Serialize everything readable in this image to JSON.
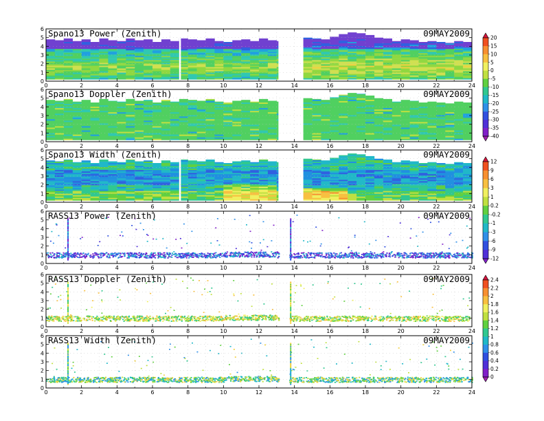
{
  "chart_data": [
    {
      "type": "heatmap",
      "title": "Spano13 Power (Zenith)",
      "date": "09MAY2009",
      "xlim": [
        0,
        24
      ],
      "ylim": [
        0,
        6
      ],
      "xticks": [
        "0",
        "2",
        "4",
        "6",
        "8",
        "10",
        "12",
        "14",
        "16",
        "18",
        "20",
        "22",
        "24"
      ],
      "yticks": [
        "0",
        "1",
        "2",
        "3",
        "4",
        "5",
        "6"
      ],
      "colorbar": "power",
      "data_top_km": [
        4.8,
        4.7,
        4.9,
        4.6,
        4.8,
        4.5,
        4.9,
        4.7,
        4.6,
        4.9,
        4.7,
        4.8,
        4.5,
        4.8,
        4.6,
        4.9,
        4.8,
        4.7,
        4.9,
        4.6,
        4.5,
        4.7,
        4.8,
        4.6,
        4.9,
        4.7,
        4.6,
        null,
        null,
        5.0,
        4.9,
        4.8,
        5.1,
        5.4,
        5.6,
        5.5,
        5.3,
        5.0,
        4.9,
        4.6,
        4.8,
        4.7,
        4.5,
        4.6,
        4.5,
        4.4,
        4.6,
        4.5
      ],
      "gaps_hours": [
        [
          7.5,
          7.6
        ],
        [
          13.1,
          13.8
        ]
      ]
    },
    {
      "type": "heatmap",
      "title": "Spano13 Doppler (Zenith)",
      "date": "09MAY2009",
      "xlim": [
        0,
        24
      ],
      "ylim": [
        0,
        6
      ],
      "xticks": [
        "0",
        "2",
        "4",
        "6",
        "8",
        "10",
        "12",
        "14",
        "16",
        "18",
        "20",
        "22",
        "24"
      ],
      "yticks": [
        "0",
        "1",
        "2",
        "3",
        "4",
        "5",
        "6"
      ],
      "colorbar": "power",
      "data_top_km": [
        4.8,
        4.7,
        4.9,
        4.6,
        4.8,
        4.5,
        4.9,
        4.7,
        4.6,
        4.9,
        4.7,
        4.8,
        4.5,
        4.8,
        4.6,
        4.9,
        4.8,
        4.7,
        4.9,
        4.6,
        4.5,
        4.7,
        4.8,
        4.6,
        4.9,
        4.7,
        4.6,
        null,
        null,
        5.0,
        4.9,
        4.8,
        5.1,
        5.4,
        5.6,
        5.5,
        5.3,
        5.0,
        4.9,
        4.6,
        4.8,
        4.7,
        4.5,
        4.6,
        4.5,
        4.4,
        4.6,
        4.5
      ],
      "gaps_hours": [
        [
          13.1,
          13.8
        ]
      ]
    },
    {
      "type": "heatmap",
      "title": "Spano13 Width (Zenith)",
      "date": "09MAY2009",
      "xlim": [
        0,
        24
      ],
      "ylim": [
        0,
        6
      ],
      "xticks": [
        "0",
        "2",
        "4",
        "6",
        "8",
        "10",
        "12",
        "14",
        "16",
        "18",
        "20",
        "22",
        "24"
      ],
      "yticks": [
        "0",
        "1",
        "2",
        "3",
        "4",
        "5",
        "6"
      ],
      "colorbar": "width",
      "data_top_km": [
        4.8,
        4.7,
        4.9,
        4.6,
        4.8,
        4.5,
        4.9,
        4.7,
        4.6,
        4.9,
        4.7,
        4.8,
        4.5,
        4.8,
        4.6,
        4.9,
        4.8,
        4.7,
        4.9,
        4.6,
        4.5,
        4.7,
        4.8,
        4.6,
        4.9,
        4.7,
        4.6,
        null,
        null,
        5.0,
        4.9,
        4.8,
        5.1,
        5.4,
        5.6,
        5.5,
        5.3,
        5.0,
        4.9,
        4.6,
        4.8,
        4.7,
        4.5,
        4.6,
        4.5,
        4.4,
        4.6,
        4.5
      ],
      "gaps_hours": [
        [
          7.5,
          7.6
        ],
        [
          13.1,
          13.8
        ]
      ]
    },
    {
      "type": "scatter",
      "title": "RASS13 Power (Zenith)",
      "date": "09MAY2009",
      "xlim": [
        0,
        24
      ],
      "ylim": [
        0,
        6
      ],
      "xticks": [
        "0",
        "2",
        "4",
        "6",
        "8",
        "10",
        "12",
        "14",
        "16",
        "18",
        "20",
        "22",
        "24"
      ],
      "yticks": [
        "0",
        "1",
        "2",
        "3",
        "4",
        "5",
        "6"
      ],
      "colorbar": "width",
      "band_km": [
        0.7,
        1.3
      ],
      "spikes_hours": [
        1.2,
        13.75
      ]
    },
    {
      "type": "scatter",
      "title": "RASS13 Doppler (Zenith)",
      "date": "09MAY2009",
      "xlim": [
        0,
        24
      ],
      "ylim": [
        0,
        6
      ],
      "xticks": [
        "0",
        "2",
        "4",
        "6",
        "8",
        "10",
        "12",
        "14",
        "16",
        "18",
        "20",
        "22",
        "24"
      ],
      "yticks": [
        "0",
        "1",
        "2",
        "3",
        "4",
        "5",
        "6"
      ],
      "colorbar": "doppler",
      "band_km": [
        0.7,
        1.3
      ],
      "spikes_hours": [
        1.2,
        13.75
      ]
    },
    {
      "type": "scatter",
      "title": "RASS13 Width (Zenith)",
      "date": "09MAY2009",
      "xlim": [
        0,
        24
      ],
      "ylim": [
        0,
        6
      ],
      "xticks": [
        "0",
        "2",
        "4",
        "6",
        "8",
        "10",
        "12",
        "14",
        "16",
        "18",
        "20",
        "22",
        "24"
      ],
      "yticks": [
        "0",
        "1",
        "2",
        "3",
        "4",
        "5",
        "6"
      ],
      "colorbar": "doppler",
      "band_km": [
        0.7,
        1.3
      ],
      "spikes_hours": [
        1.2,
        13.75
      ]
    }
  ],
  "colorbars": {
    "power": {
      "labels": [
        "20",
        "15",
        "10",
        "5",
        "0",
        "-5",
        "-10",
        "-15",
        "-20",
        "-25",
        "-30",
        "-35",
        "-40"
      ],
      "colors": [
        "#d4143c",
        "#f05020",
        "#f89030",
        "#f8c040",
        "#f0f060",
        "#c0e040",
        "#60d040",
        "#30c890",
        "#20b8c8",
        "#3090e8",
        "#3050e0",
        "#5030d8",
        "#8020c8",
        "#a020b0"
      ]
    },
    "width": {
      "labels": [
        "12",
        "9",
        "6",
        "3",
        "1",
        "0.2",
        "-0.2",
        "-1",
        "-3",
        "-6",
        "-9",
        "-12"
      ],
      "colors": [
        "#d4143c",
        "#f05020",
        "#f89030",
        "#f8c040",
        "#f0f060",
        "#c0e040",
        "#60d040",
        "#30c890",
        "#20b8c8",
        "#3090e8",
        "#3050e0",
        "#5030d8",
        "#8020c8"
      ]
    },
    "doppler": {
      "labels": [
        "2.4",
        "2.2",
        "2",
        "1.8",
        "1.6",
        "1.4",
        "1.2",
        "1",
        "0.8",
        "0.6",
        "0.4",
        "0.2",
        "0"
      ],
      "colors": [
        "#d4143c",
        "#f05020",
        "#f89030",
        "#f8c040",
        "#f0f060",
        "#c0e040",
        "#60d040",
        "#30c890",
        "#20b8c8",
        "#3090e8",
        "#3050e0",
        "#5030d8",
        "#8020c8",
        "#a020b0"
      ]
    }
  }
}
